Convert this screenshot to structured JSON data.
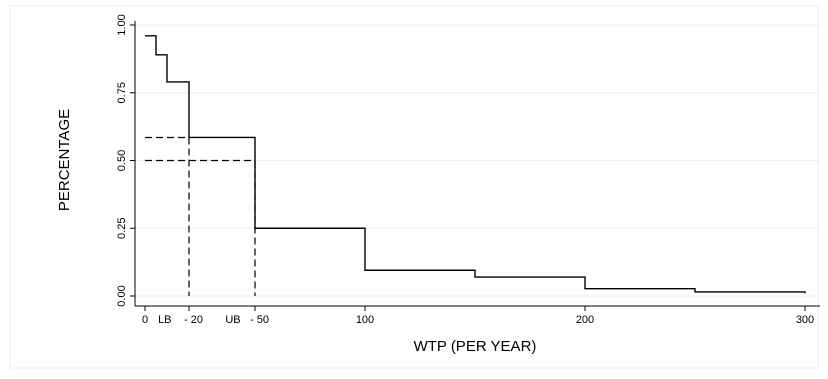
{
  "chart_data": {
    "type": "line",
    "title": "",
    "xlabel": "WTP (PER YEAR)",
    "ylabel": "PERCENTAGE",
    "xlim": [
      0,
      300
    ],
    "ylim": [
      0,
      1
    ],
    "grid": true,
    "x_ticks": [
      {
        "value": 0,
        "label": "0"
      },
      {
        "value": 9,
        "label": "LB"
      },
      {
        "value": 20,
        "label": "- 20"
      },
      {
        "value": 40,
        "label": "UB"
      },
      {
        "value": 50,
        "label": "- 50"
      },
      {
        "value": 100,
        "label": "100"
      },
      {
        "value": 200,
        "label": "200"
      },
      {
        "value": 300,
        "label": "300"
      }
    ],
    "y_ticks": [
      {
        "value": 0,
        "label": "0.00"
      },
      {
        "value": 0.25,
        "label": "0.25"
      },
      {
        "value": 0.5,
        "label": "0.50"
      },
      {
        "value": 0.75,
        "label": "0.75"
      },
      {
        "value": 1,
        "label": "1.00"
      }
    ],
    "series": [
      {
        "style": "step",
        "x": [
          0,
          5,
          10,
          20,
          50,
          100,
          150,
          200,
          250,
          300
        ],
        "y": [
          0.96,
          0.89,
          0.79,
          0.585,
          0.25,
          0.095,
          0.07,
          0.027,
          0.015,
          0.01
        ]
      }
    ],
    "reference_lines": [
      {
        "from": [
          0,
          0.585
        ],
        "to": [
          20,
          0.585
        ],
        "style": "dashed"
      },
      {
        "from": [
          20,
          0.585
        ],
        "to": [
          20,
          0
        ],
        "style": "dashed"
      },
      {
        "from": [
          0,
          0.5
        ],
        "to": [
          50,
          0.5
        ],
        "style": "dashed"
      },
      {
        "from": [
          50,
          0.5
        ],
        "to": [
          50,
          0
        ],
        "style": "dashed"
      }
    ]
  }
}
